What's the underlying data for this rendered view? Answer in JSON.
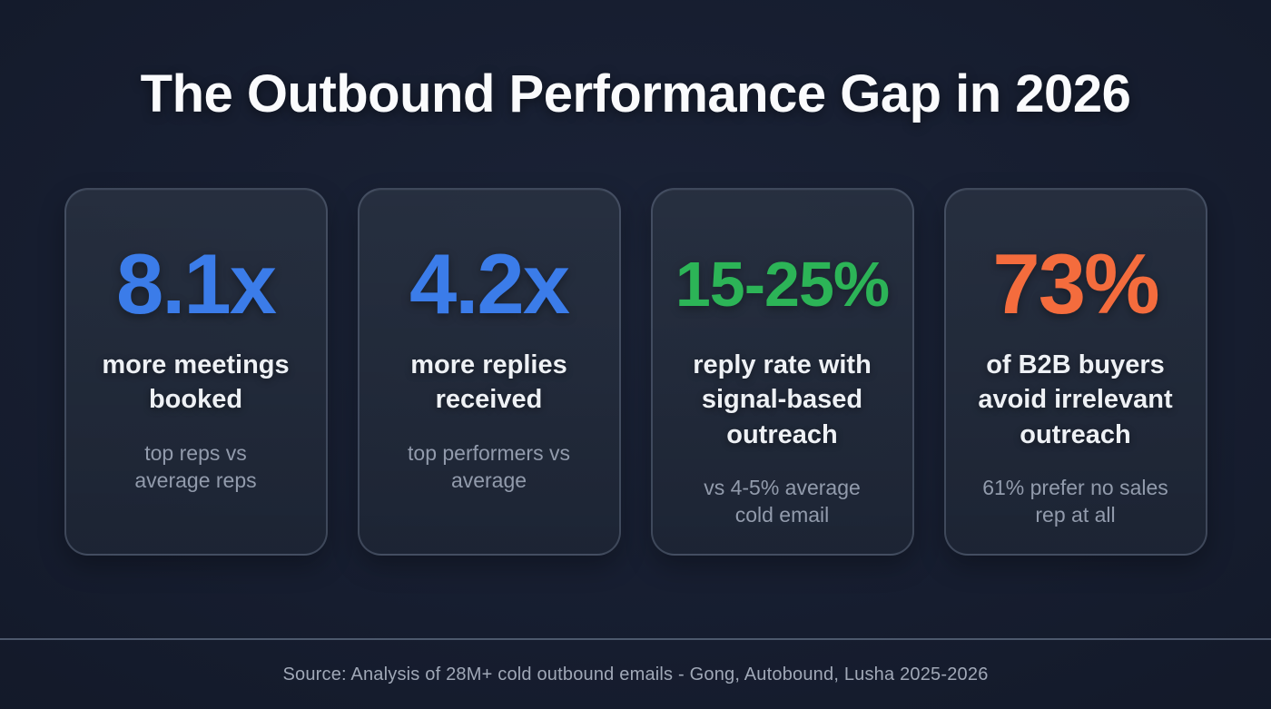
{
  "title": "The Outbound Performance Gap in 2026",
  "colors": {
    "background": "#161d2f",
    "card_background": "#242c3a",
    "card_border": "#76849c",
    "blue_accent": "#3b7ce9",
    "green_accent": "#2cb457",
    "orange_accent": "#f46c3d",
    "label_text": "#eef1f5",
    "sublabel_text": "#929bac",
    "footer_text": "#a0a8b7"
  },
  "cards": [
    {
      "value": "8.1x",
      "label": "more meetings\nbooked",
      "sublabel": "top reps vs\naverage reps",
      "accent": "#3b7ce9"
    },
    {
      "value": "4.2x",
      "label": "more replies\nreceived",
      "sublabel": "top performers vs\naverage",
      "accent": "#3b7ce9"
    },
    {
      "value": "15-25%",
      "label": "reply rate with\nsignal-based\noutreach",
      "sublabel": "vs 4-5% average\ncold email",
      "accent": "#2cb457"
    },
    {
      "value": "73%",
      "label": "of B2B buyers\navoid irrelevant\noutreach",
      "sublabel": "61% prefer no sales\nrep at all",
      "accent": "#f46c3d"
    }
  ],
  "footer": {
    "source": "Source: Analysis of 28M+ cold outbound emails - Gong, Autobound, Lusha 2025-2026"
  },
  "chart_data": {
    "type": "table",
    "title": "The Outbound Performance Gap in 2026",
    "stats": [
      {
        "value": "8.1x",
        "metric": "more meetings booked",
        "context": "top reps vs average reps"
      },
      {
        "value": "4.2x",
        "metric": "more replies received",
        "context": "top performers vs average"
      },
      {
        "value": "15-25%",
        "metric": "reply rate with signal-based outreach",
        "context": "vs 4-5% average cold email"
      },
      {
        "value": "73%",
        "metric": "of B2B buyers avoid irrelevant outreach",
        "context": "61% prefer no sales rep at all"
      }
    ],
    "source": "Analysis of 28M+ cold outbound emails - Gong, Autobound, Lusha 2025-2026"
  }
}
